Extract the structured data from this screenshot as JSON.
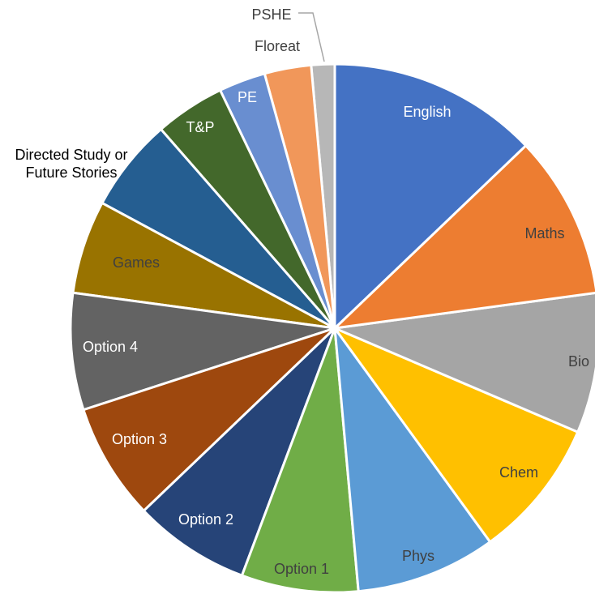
{
  "chart_data": {
    "type": "pie",
    "categories": [
      "English",
      "Maths",
      "Bio",
      "Chem",
      "Phys",
      "Option 1",
      "Option 2",
      "Option 3",
      "Option 4",
      "Games",
      "Directed Study or Future Stories",
      "T&P",
      "PE",
      "Floreat",
      "PSHE"
    ],
    "values": [
      9,
      7,
      6,
      6,
      6,
      5,
      5,
      5,
      5,
      4,
      4,
      3,
      2,
      2,
      1
    ],
    "colors": [
      "#4472c4",
      "#ed7d31",
      "#a5a5a5",
      "#ffc000",
      "#5b9bd5",
      "#70ad47",
      "#264478",
      "#9e480e",
      "#636363",
      "#997300",
      "#255e91",
      "#43682b",
      "#698ed0",
      "#f1975a",
      "#b7b7b7"
    ]
  }
}
